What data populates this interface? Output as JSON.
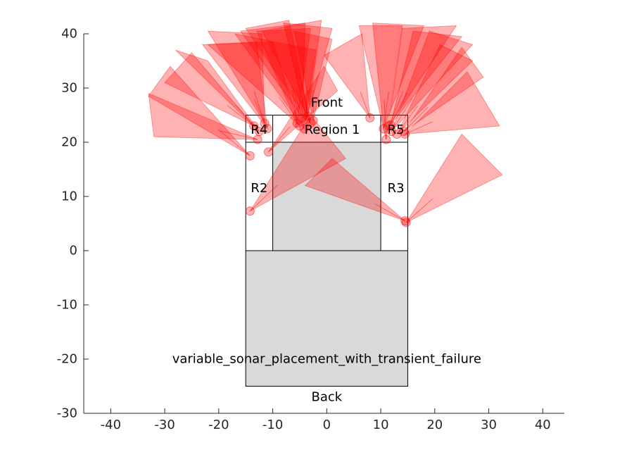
{
  "chart_data": {
    "type": "scatter",
    "title": "",
    "xlabel": "",
    "ylabel": "",
    "xlim": [
      -45,
      44
    ],
    "ylim": [
      -30,
      40
    ],
    "grid": false,
    "x_ticks": [
      -40,
      -30,
      -20,
      -10,
      0,
      10,
      20,
      30,
      40
    ],
    "y_ticks": [
      -30,
      -20,
      -10,
      0,
      10,
      20,
      30,
      40
    ],
    "colors": {
      "sonar": "#ff0000",
      "region_fill": "#d9d9d9",
      "outline": "#000000"
    },
    "body": {
      "rear_block": {
        "x": [
          -15,
          15
        ],
        "y": [
          -25,
          0
        ]
      },
      "front_outline": {
        "x": [
          -15,
          15
        ],
        "y": [
          0,
          25
        ]
      },
      "region1": {
        "x": [
          -10,
          10
        ],
        "y": [
          0,
          20
        ]
      },
      "r2_divider_x": -10,
      "r3_divider_x": 10,
      "top_divider_y": 20
    },
    "labels": [
      {
        "text": "Front",
        "x": 0,
        "y": 27.3
      },
      {
        "text": "Region 1",
        "x": 1,
        "y": 22.3
      },
      {
        "text": "R4",
        "x": -12.5,
        "y": 22.3
      },
      {
        "text": "R5",
        "x": 12.8,
        "y": 22.3
      },
      {
        "text": "R2",
        "x": -12.5,
        "y": 11.5
      },
      {
        "text": "R3",
        "x": 12.8,
        "y": 11.5
      },
      {
        "text": "variable_sonar_placement_with_transient_failure",
        "x": 0,
        "y": -20
      },
      {
        "text": "Back",
        "x": 0,
        "y": -27
      }
    ],
    "sonars": [
      {
        "x": -14.2,
        "y": 17.5,
        "cone": [
          [
            -33,
            28.5
          ],
          [
            -29,
            34
          ]
        ]
      },
      {
        "x": -12.8,
        "y": 20.5,
        "cone": [
          [
            -32,
            21
          ],
          [
            -33,
            29
          ]
        ]
      },
      {
        "x": -12.5,
        "y": 22,
        "cone": [
          [
            -28,
            37
          ],
          [
            -22,
            35
          ]
        ]
      },
      {
        "x": -13.5,
        "y": 23,
        "cone": [
          [
            -30,
            31
          ],
          [
            -25,
            36.5
          ]
        ]
      },
      {
        "x": -11.5,
        "y": 23.5,
        "cone": [
          [
            -22,
            40.5
          ],
          [
            -12,
            40
          ]
        ]
      },
      {
        "x": -11,
        "y": 22.5,
        "cone": [
          [
            -23,
            38
          ],
          [
            -13,
            38.5
          ]
        ]
      },
      {
        "x": -10.8,
        "y": 18.2,
        "cone": [
          [
            -0.5,
            34
          ],
          [
            2,
            29.5
          ]
        ]
      },
      {
        "x": -14.2,
        "y": 7.3,
        "cone": [
          [
            -3,
            25
          ],
          [
            3.5,
            17
          ]
        ]
      },
      {
        "x": -5.5,
        "y": 23.5,
        "cone": [
          [
            -13,
            40.5
          ],
          [
            -3,
            41
          ]
        ]
      },
      {
        "x": -4.5,
        "y": 24.5,
        "cone": [
          [
            -16,
            40.5
          ],
          [
            -4,
            42
          ]
        ]
      },
      {
        "x": -3.8,
        "y": 24.2,
        "cone": [
          [
            -8,
            42
          ],
          [
            1,
            41
          ]
        ]
      },
      {
        "x": -5,
        "y": 23,
        "cone": [
          [
            -22,
            38
          ],
          [
            -10,
            38.5
          ]
        ]
      },
      {
        "x": -4.2,
        "y": 22.5,
        "cone": [
          [
            -17,
            40
          ],
          [
            -2,
            37
          ]
        ]
      },
      {
        "x": -3.5,
        "y": 24.8,
        "cone": [
          [
            -12,
            40.5
          ],
          [
            -1,
            42.5
          ]
        ]
      },
      {
        "x": -3,
        "y": 23.5,
        "cone": [
          [
            -15,
            41
          ],
          [
            -7,
            42.5
          ]
        ]
      },
      {
        "x": -2.5,
        "y": 24,
        "cone": [
          [
            -6,
            40.5
          ],
          [
            1,
            39
          ]
        ]
      },
      {
        "x": 8,
        "y": 24.5,
        "cone": [
          [
            -0.5,
            36
          ],
          [
            6.5,
            40
          ]
        ]
      },
      {
        "x": 11,
        "y": 20.5,
        "cone": [
          [
            6,
            41.5
          ],
          [
            14,
            41.5
          ]
        ]
      },
      {
        "x": 10.5,
        "y": 22.5,
        "cone": [
          [
            8.5,
            42
          ],
          [
            18,
            41.5
          ]
        ]
      },
      {
        "x": 11.5,
        "y": 23,
        "cone": [
          [
            14,
            41
          ],
          [
            24,
            41.5
          ]
        ]
      },
      {
        "x": 12,
        "y": 22,
        "cone": [
          [
            19,
            40.5
          ],
          [
            27,
            38
          ]
        ]
      },
      {
        "x": 13,
        "y": 21.5,
        "cone": [
          [
            21,
            38
          ],
          [
            27,
            35
          ]
        ]
      },
      {
        "x": 11.8,
        "y": 23.2,
        "cone": [
          [
            16,
            40.5
          ],
          [
            25,
            39.5
          ]
        ]
      },
      {
        "x": 14.5,
        "y": 21.5,
        "cone": [
          [
            26,
            33
          ],
          [
            32,
            23
          ]
        ]
      },
      {
        "x": 14.3,
        "y": 22,
        "cone": [
          [
            25,
            37.5
          ],
          [
            29,
            32
          ]
        ]
      },
      {
        "x": 14.5,
        "y": 5.5,
        "cone": [
          [
            -4,
            12
          ],
          [
            1,
            17
          ]
        ]
      },
      {
        "x": 14.7,
        "y": 5.2,
        "cone": [
          [
            25,
            21.5
          ],
          [
            32.5,
            14
          ]
        ]
      }
    ]
  }
}
